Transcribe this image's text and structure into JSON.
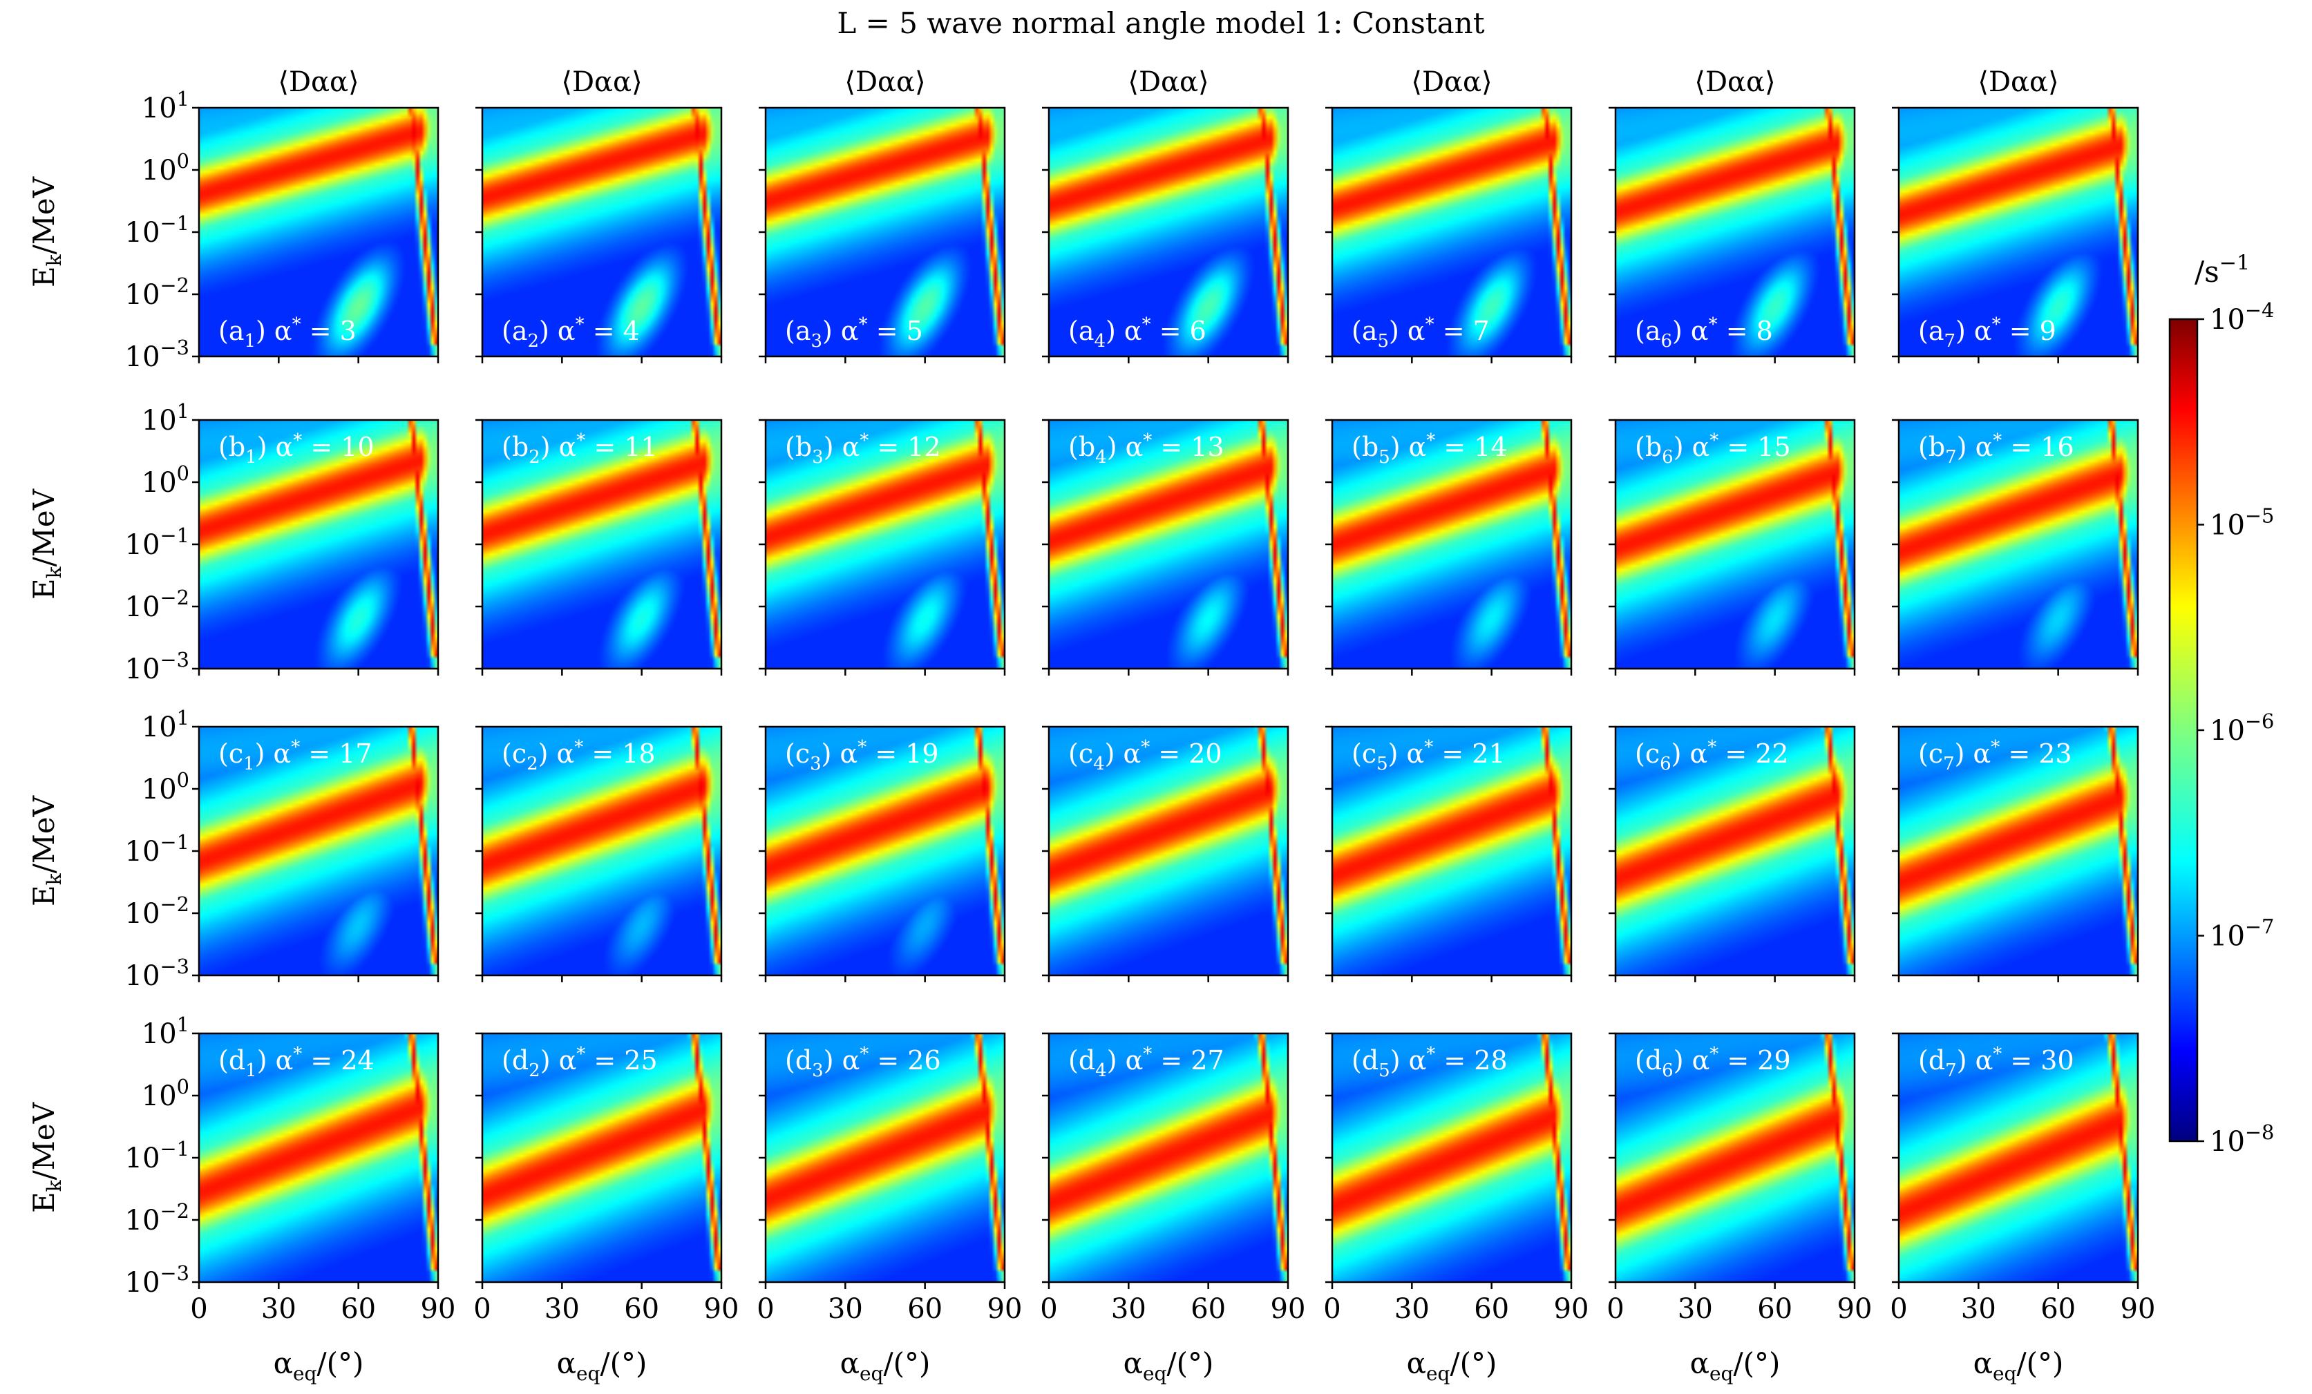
{
  "chart_data": {
    "type": "heatmap",
    "title": "L = 5 wave normal angle model 1: Constant",
    "col_title": "⟨Dαα⟩",
    "xlabel": "αeq/(°)",
    "ylabel": "Ek/MeV",
    "x_range": [
      0,
      90
    ],
    "y_range": [
      0.001,
      10
    ],
    "y_scale": "log",
    "x_ticks": [
      "0",
      "30",
      "60",
      "90"
    ],
    "y_ticks": [
      {
        "base": "10",
        "exp": "1"
      },
      {
        "base": "10",
        "exp": "0"
      },
      {
        "base": "10",
        "exp": "−1"
      },
      {
        "base": "10",
        "exp": "−2"
      },
      {
        "base": "10",
        "exp": "−3"
      }
    ],
    "colorbar": {
      "label": "/s",
      "label_exp": "−1",
      "scale": "log",
      "range": [
        1e-08,
        0.0001
      ],
      "colormap": "jet",
      "ticks": [
        {
          "base": "10",
          "exp": "−4"
        },
        {
          "base": "10",
          "exp": "−5"
        },
        {
          "base": "10",
          "exp": "−6"
        },
        {
          "base": "10",
          "exp": "−7"
        },
        {
          "base": "10",
          "exp": "−8"
        }
      ]
    },
    "rows": [
      "a",
      "b",
      "c",
      "d"
    ],
    "panel_equals": "=",
    "panels": [
      {
        "row": "a",
        "sub": "1",
        "alpha_star": 3
      },
      {
        "row": "a",
        "sub": "2",
        "alpha_star": 4
      },
      {
        "row": "a",
        "sub": "3",
        "alpha_star": 5
      },
      {
        "row": "a",
        "sub": "4",
        "alpha_star": 6
      },
      {
        "row": "a",
        "sub": "5",
        "alpha_star": 7
      },
      {
        "row": "a",
        "sub": "6",
        "alpha_star": 8
      },
      {
        "row": "a",
        "sub": "7",
        "alpha_star": 9
      },
      {
        "row": "b",
        "sub": "1",
        "alpha_star": 10
      },
      {
        "row": "b",
        "sub": "2",
        "alpha_star": 11
      },
      {
        "row": "b",
        "sub": "3",
        "alpha_star": 12
      },
      {
        "row": "b",
        "sub": "4",
        "alpha_star": 13
      },
      {
        "row": "b",
        "sub": "5",
        "alpha_star": 14
      },
      {
        "row": "b",
        "sub": "6",
        "alpha_star": 15
      },
      {
        "row": "b",
        "sub": "7",
        "alpha_star": 16
      },
      {
        "row": "c",
        "sub": "1",
        "alpha_star": 17
      },
      {
        "row": "c",
        "sub": "2",
        "alpha_star": 18
      },
      {
        "row": "c",
        "sub": "3",
        "alpha_star": 19
      },
      {
        "row": "c",
        "sub": "4",
        "alpha_star": 20
      },
      {
        "row": "c",
        "sub": "5",
        "alpha_star": 21
      },
      {
        "row": "c",
        "sub": "6",
        "alpha_star": 22
      },
      {
        "row": "c",
        "sub": "7",
        "alpha_star": 23
      },
      {
        "row": "d",
        "sub": "1",
        "alpha_star": 24
      },
      {
        "row": "d",
        "sub": "2",
        "alpha_star": 25
      },
      {
        "row": "d",
        "sub": "3",
        "alpha_star": 26
      },
      {
        "row": "d",
        "sub": "4",
        "alpha_star": 27
      },
      {
        "row": "d",
        "sub": "5",
        "alpha_star": 28
      },
      {
        "row": "d",
        "sub": "6",
        "alpha_star": 29
      },
      {
        "row": "d",
        "sub": "7",
        "alpha_star": 30
      }
    ]
  }
}
